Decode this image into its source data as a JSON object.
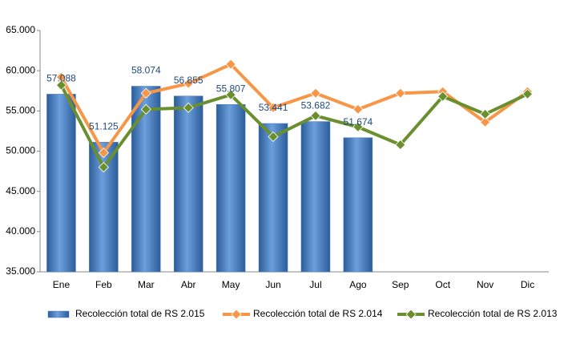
{
  "chart_data": {
    "type": "bar",
    "categories": [
      "Ene",
      "Feb",
      "Mar",
      "Abr",
      "May",
      "Jun",
      "Jul",
      "Ago",
      "Sep",
      "Oct",
      "Nov",
      "Dic"
    ],
    "series": [
      {
        "name": "Recolección total de RS 2.015",
        "type": "bar",
        "color": "#4a7ebb",
        "values": [
          57088,
          51125,
          58074,
          56855,
          55807,
          53441,
          53682,
          51674,
          null,
          null,
          null,
          null
        ],
        "value_labels": [
          "57.088",
          "51.125",
          "58.074",
          "56.855",
          "55.807",
          "53.441",
          "53.682",
          "51.674",
          null,
          null,
          null,
          null
        ]
      },
      {
        "name": "Recolección total de RS 2.014",
        "type": "line",
        "color": "#f79646",
        "values": [
          59200,
          49800,
          57200,
          58400,
          60800,
          55400,
          57200,
          55200,
          57200,
          57400,
          53600,
          57400
        ]
      },
      {
        "name": "Recolección total de RS 2.013",
        "type": "line",
        "color": "#6a8f2e",
        "values": [
          58200,
          48000,
          55200,
          55400,
          57000,
          51800,
          54400,
          53000,
          50800,
          56800,
          54600,
          57100
        ]
      }
    ],
    "ylim": [
      35000,
      65000
    ],
    "yticks": [
      {
        "value": 35000,
        "label": "35.000"
      },
      {
        "value": 40000,
        "label": "40.000"
      },
      {
        "value": 45000,
        "label": "45.000"
      },
      {
        "value": 50000,
        "label": "50.000"
      },
      {
        "value": 55000,
        "label": "55.000"
      },
      {
        "value": 60000,
        "label": "60.000"
      },
      {
        "value": 65000,
        "label": "65.000"
      }
    ],
    "grid": false,
    "legend": "bottom"
  }
}
